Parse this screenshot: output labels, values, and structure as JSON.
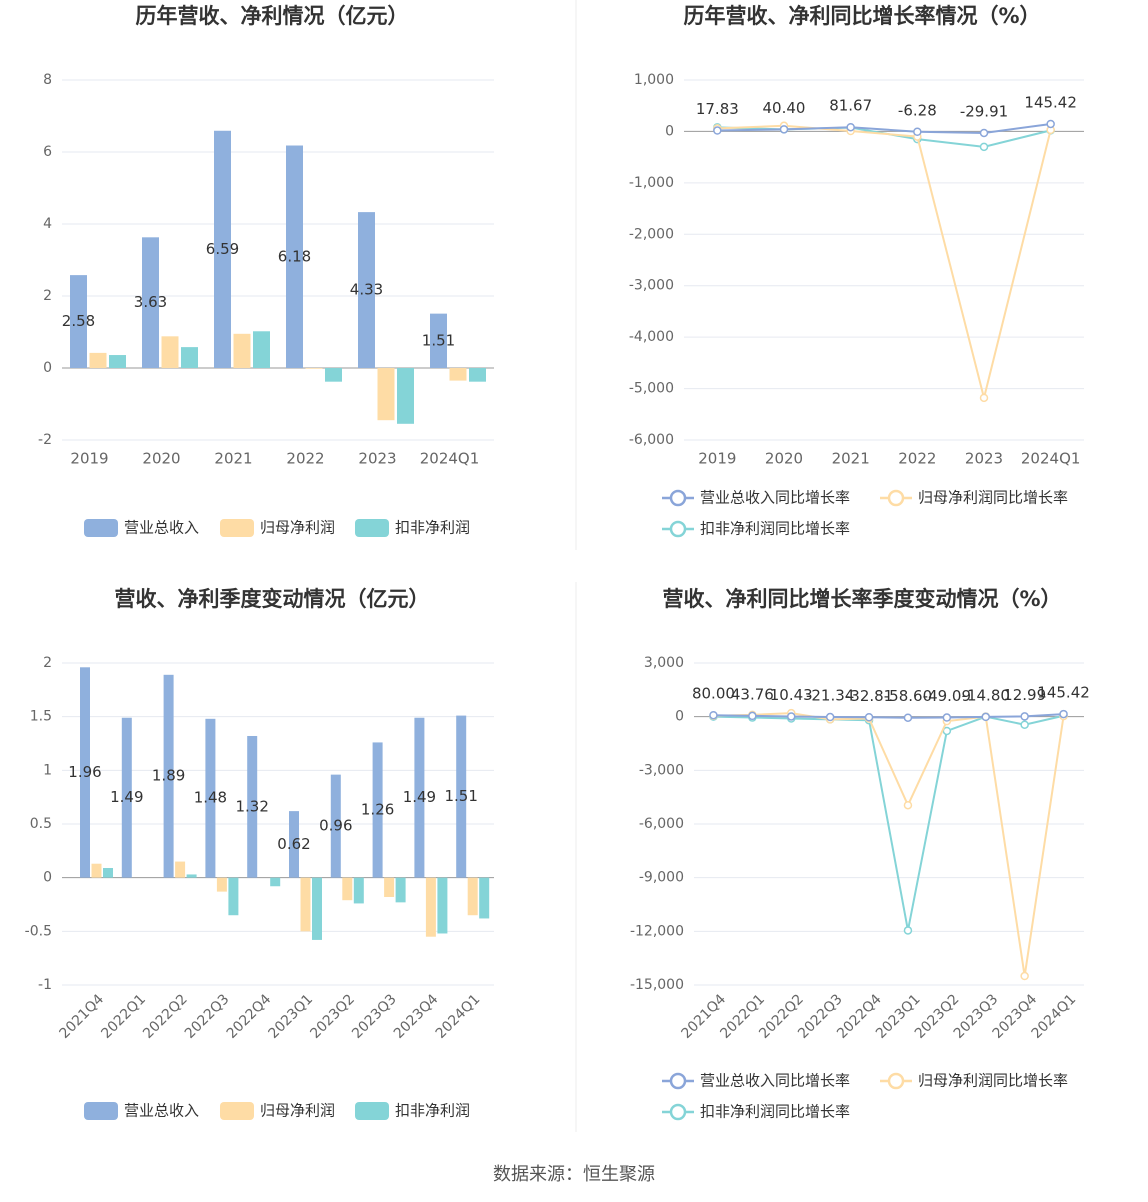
{
  "chart_data": [
    {
      "type": "bar",
      "title": "历年营收、净利情况（亿元）",
      "categories": [
        "2019",
        "2020",
        "2021",
        "2022",
        "2023",
        "2024Q1"
      ],
      "series": [
        {
          "name": "营业总收入",
          "color": "#8fb0dd",
          "show_labels": true,
          "values": [
            2.58,
            3.63,
            6.59,
            6.18,
            4.33,
            1.51
          ]
        },
        {
          "name": "归母净利润",
          "color": "#fedca5",
          "values": [
            0.42,
            0.88,
            0.95,
            -0.02,
            -1.45,
            -0.35
          ]
        },
        {
          "name": "扣非净利润",
          "color": "#84d4d7",
          "values": [
            0.36,
            0.58,
            1.02,
            -0.38,
            -1.55,
            -0.38
          ]
        }
      ],
      "ylim": [
        -2,
        8
      ],
      "yticks": [
        -2,
        0,
        2,
        4,
        6,
        8
      ],
      "grid": true,
      "legend": "bottom"
    },
    {
      "type": "line",
      "title": "历年营收、净利同比增长率情况（%）",
      "categories": [
        "2019",
        "2020",
        "2021",
        "2022",
        "2023",
        "2024Q1"
      ],
      "series": [
        {
          "name": "营业总收入同比增长率",
          "color": "#8aa5d9",
          "show_labels": true,
          "values": [
            17.83,
            40.4,
            81.67,
            -6.28,
            -29.91,
            145.42
          ],
          "value_labels": [
            "17.83",
            "40.40",
            "81.67",
            "-6.28",
            "-29.91",
            "145.42"
          ]
        },
        {
          "name": "归母净利润同比增长率",
          "color": "#fedca5",
          "values": [
            60,
            110,
            8,
            -100,
            -5180,
            30
          ]
        },
        {
          "name": "扣非净利润同比增长率",
          "color": "#84d4d7",
          "values": [
            80,
            40,
            75,
            -150,
            -300,
            20
          ]
        }
      ],
      "ylim": [
        -6000,
        1000
      ],
      "yticks": [
        {
          "value": -6000,
          "label": "-6,000"
        },
        {
          "value": -5000,
          "label": "-5,000"
        },
        {
          "value": -4000,
          "label": "-4,000"
        },
        {
          "value": -3000,
          "label": "-3,000"
        },
        {
          "value": -2000,
          "label": "-2,000"
        },
        {
          "value": -1000,
          "label": "-1,000"
        },
        0,
        {
          "value": 1000,
          "label": "1,000"
        }
      ],
      "grid": true,
      "legend": "bottom"
    },
    {
      "type": "bar",
      "title": "营收、净利季度变动情况（亿元）",
      "categories": [
        "2021Q4",
        "2022Q1",
        "2022Q2",
        "2022Q3",
        "2022Q4",
        "2023Q1",
        "2023Q2",
        "2023Q3",
        "2023Q4",
        "2024Q1"
      ],
      "series": [
        {
          "name": "营业总收入",
          "color": "#8fb0dd",
          "show_labels": true,
          "values": [
            1.96,
            1.49,
            1.89,
            1.48,
            1.32,
            0.62,
            0.96,
            1.26,
            1.49,
            1.51
          ]
        },
        {
          "name": "归母净利润",
          "color": "#fedca5",
          "values": [
            0.13,
            0,
            0.15,
            -0.13,
            0,
            -0.5,
            -0.21,
            -0.18,
            -0.55,
            -0.35
          ]
        },
        {
          "name": "扣非净利润",
          "color": "#84d4d7",
          "values": [
            0.09,
            0,
            0.03,
            -0.35,
            -0.08,
            -0.58,
            -0.24,
            -0.23,
            -0.52,
            -0.38
          ]
        }
      ],
      "ylim": [
        -1,
        2
      ],
      "yticks": [
        -1,
        -0.5,
        0,
        0.5,
        1,
        1.5,
        2
      ],
      "grid": true,
      "legend": "bottom"
    },
    {
      "type": "line",
      "title": "营收、净利同比增长率季度变动情况（%）",
      "categories": [
        "2021Q4",
        "2022Q1",
        "2022Q2",
        "2022Q3",
        "2022Q4",
        "2023Q1",
        "2023Q2",
        "2023Q3",
        "2023Q4",
        "2024Q1"
      ],
      "series": [
        {
          "name": "营业总收入同比增长率",
          "color": "#8aa5d9",
          "show_labels": true,
          "values": [
            80,
            43.76,
            10.43,
            -21.34,
            -32.81,
            -58.6,
            -49.09,
            -14.8,
            12.99,
            145.42
          ],
          "value_labels": [
            "80.00",
            "43.76",
            "10.43",
            "-21.34",
            "-32.81",
            "-58.60",
            "-49.09",
            "-14.80",
            "12.99",
            "145.42"
          ]
        },
        {
          "name": "归母净利润同比增长率",
          "color": "#fedca5",
          "values": [
            50,
            100,
            200,
            -150,
            -100,
            -4950,
            -250,
            0,
            -14500,
            30
          ]
        },
        {
          "name": "扣非净利润同比增长率",
          "color": "#84d4d7",
          "values": [
            0,
            -50,
            -100,
            -150,
            -200,
            -11950,
            -800,
            0,
            -450,
            50
          ]
        }
      ],
      "ylim": [
        -15000,
        3000
      ],
      "yticks": [
        {
          "value": -15000,
          "label": "-15,000"
        },
        {
          "value": -12000,
          "label": "-12,000"
        },
        {
          "value": -9000,
          "label": "-9,000"
        },
        {
          "value": -6000,
          "label": "-6,000"
        },
        {
          "value": -3000,
          "label": "-3,000"
        },
        0,
        {
          "value": 3000,
          "label": "3,000"
        }
      ],
      "grid": true,
      "legend": "bottom"
    }
  ],
  "source": "数据来源：恒生聚源"
}
